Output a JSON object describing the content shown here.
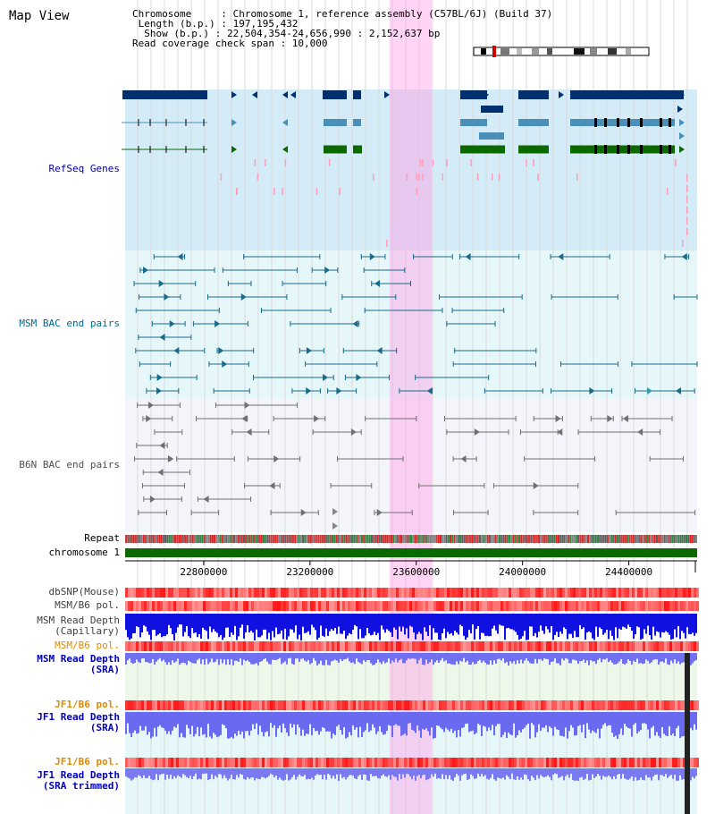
{
  "page_title": "Map View",
  "header": {
    "chromosome_line": "Chromosome     : Chromosome 1, reference assembly (C57BL/6J) (Build 37)",
    "length_line": "Length (b.p.) : 197,195,432",
    "show_line": "Show (b.p.) : 22,504,354-24,656,990 : 2,152,637 bp",
    "coverage_line": "Read coverage check span : 10,000"
  },
  "view": {
    "start": 22504354,
    "end": 24656990,
    "highlight_start": 23500000,
    "highlight_end": 23660000
  },
  "tracks": {
    "refseq": {
      "label": "RefSeq Genes",
      "color": "#0000a0"
    },
    "msm_bac": {
      "label": "MSM BAC end pairs",
      "color": "#006a8a"
    },
    "b6n_bac": {
      "label": "B6N BAC end pairs",
      "color": "#505050"
    },
    "repeat": {
      "label": "Repeat"
    },
    "chromosome": {
      "label": "chromosome 1"
    },
    "dbsnp": {
      "label": "dbSNP(Mouse)"
    },
    "msm_b6_pol_1": {
      "label": "MSM/B6 pol."
    },
    "msm_read_depth_cap": {
      "label_1": "MSM Read Depth",
      "label_2": "(Capillary)"
    },
    "msm_b6_pol_2": {
      "label": "MSM/B6 pol."
    },
    "msm_read_depth_sra": {
      "label_1": "MSM Read Depth",
      "label_2": "(SRA)"
    },
    "jf1_b6_pol_1": {
      "label": "JF1/B6 pol."
    },
    "jf1_read_depth_sra": {
      "label_1": "JF1 Read Depth",
      "label_2": "(SRA)"
    },
    "jf1_b6_pol_2": {
      "label": "JF1/B6 pol."
    },
    "jf1_read_depth_trim": {
      "label_1": "JF1 Read Depth",
      "label_2": "(SRA trimmed)"
    }
  },
  "ruler": {
    "ticks": [
      "22800000",
      "23200000",
      "23600000",
      "24000000",
      "24400000"
    ]
  },
  "colors": {
    "orange_label": "#e08a00",
    "blue_label": "#0000c0",
    "gray_label": "#404040"
  }
}
